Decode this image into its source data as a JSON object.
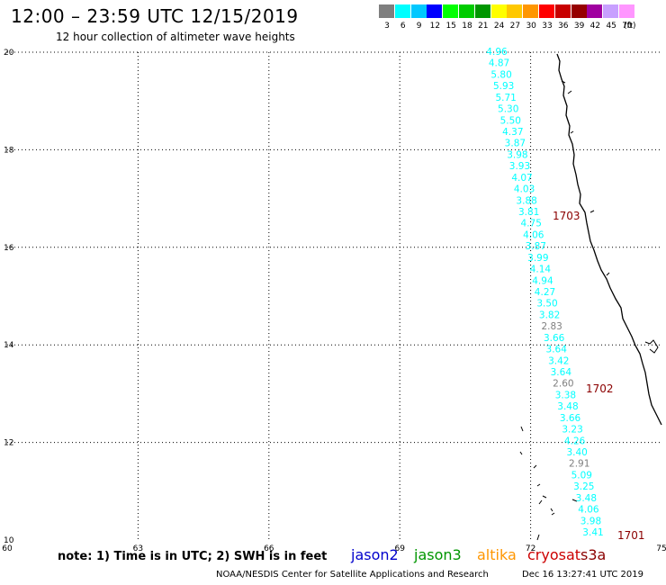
{
  "header": {
    "title": "12:00 – 23:59 UTC 12/15/2019",
    "subtitle": "12 hour collection of altimeter wave heights"
  },
  "legend": {
    "unit": "(ft)",
    "bins": [
      {
        "color": "#7f7f7f",
        "label": "3"
      },
      {
        "color": "#00ffff",
        "label": "6"
      },
      {
        "color": "#00c8ff",
        "label": "9"
      },
      {
        "color": "#0000ff",
        "label": "12"
      },
      {
        "color": "#00ff00",
        "label": "15"
      },
      {
        "color": "#00cc00",
        "label": "18"
      },
      {
        "color": "#009600",
        "label": "21"
      },
      {
        "color": "#ffff00",
        "label": "24"
      },
      {
        "color": "#ffc800",
        "label": "27"
      },
      {
        "color": "#ff9600",
        "label": "30"
      },
      {
        "color": "#ff0000",
        "label": "33"
      },
      {
        "color": "#c80000",
        "label": "36"
      },
      {
        "color": "#960000",
        "label": "39"
      },
      {
        "color": "#a000a0",
        "label": "42"
      },
      {
        "color": "#c8a0ff",
        "label": "45"
      },
      {
        "color": "#ff96ff",
        "label": "70"
      }
    ]
  },
  "map": {
    "lon_range": [
      60,
      75
    ],
    "lat_range": [
      10,
      20
    ],
    "lon_ticks": [
      "60",
      "63",
      "66",
      "69",
      "72",
      "75"
    ],
    "lat_ticks": [
      "10",
      "12",
      "14",
      "16",
      "18",
      "20"
    ],
    "track": [
      {
        "v": "4.96",
        "c": "#00ffff"
      },
      {
        "v": "4.87",
        "c": "#00ffff"
      },
      {
        "v": "5.80",
        "c": "#00ffff"
      },
      {
        "v": "5.93",
        "c": "#00ffff"
      },
      {
        "v": "5.71",
        "c": "#00ffff"
      },
      {
        "v": "5.30",
        "c": "#00ffff"
      },
      {
        "v": "5.50",
        "c": "#00ffff"
      },
      {
        "v": "4.37",
        "c": "#00ffff"
      },
      {
        "v": "3.87",
        "c": "#00ffff"
      },
      {
        "v": "3.98",
        "c": "#00ffff"
      },
      {
        "v": "3.93",
        "c": "#00ffff"
      },
      {
        "v": "4.07",
        "c": "#00ffff"
      },
      {
        "v": "4.03",
        "c": "#00ffff"
      },
      {
        "v": "3.88",
        "c": "#00ffff"
      },
      {
        "v": "3.81",
        "c": "#00ffff"
      },
      {
        "v": "4.75",
        "c": "#00ffff"
      },
      {
        "v": "4.06",
        "c": "#00ffff"
      },
      {
        "v": "3.87",
        "c": "#00ffff"
      },
      {
        "v": "3.99",
        "c": "#00ffff"
      },
      {
        "v": "4.14",
        "c": "#00ffff"
      },
      {
        "v": "4.94",
        "c": "#00ffff"
      },
      {
        "v": "4.27",
        "c": "#00ffff"
      },
      {
        "v": "3.50",
        "c": "#00ffff"
      },
      {
        "v": "3.82",
        "c": "#00ffff"
      },
      {
        "v": "2.83",
        "c": "#7f7f7f"
      },
      {
        "v": "3.66",
        "c": "#00ffff"
      },
      {
        "v": "3.64",
        "c": "#00ffff"
      },
      {
        "v": "3.42",
        "c": "#00ffff"
      },
      {
        "v": "3.64",
        "c": "#00ffff"
      },
      {
        "v": "2.60",
        "c": "#7f7f7f"
      },
      {
        "v": "3.38",
        "c": "#00ffff"
      },
      {
        "v": "3.48",
        "c": "#00ffff"
      },
      {
        "v": "3.66",
        "c": "#00ffff"
      },
      {
        "v": "3.23",
        "c": "#00ffff"
      },
      {
        "v": "4.26",
        "c": "#00ffff"
      },
      {
        "v": "3.40",
        "c": "#00ffff"
      },
      {
        "v": "2.91",
        "c": "#7f7f7f"
      },
      {
        "v": "5.09",
        "c": "#00ffff"
      },
      {
        "v": "3.25",
        "c": "#00ffff"
      },
      {
        "v": "3.48",
        "c": "#00ffff"
      },
      {
        "v": "4.06",
        "c": "#00ffff"
      },
      {
        "v": "3.98",
        "c": "#00ffff"
      },
      {
        "v": "3.41",
        "c": "#00ffff"
      }
    ],
    "time_labels": [
      {
        "text": "1703",
        "color": "#8b0000"
      },
      {
        "text": "1702",
        "color": "#8b0000"
      },
      {
        "text": "1701",
        "color": "#8b0000"
      }
    ]
  },
  "note": "note: 1) Time is in UTC; 2) SWH is in feet",
  "satellites": [
    {
      "name": "jason2",
      "color": "#0000cc"
    },
    {
      "name": "jason3",
      "color": "#009600"
    },
    {
      "name": "altika",
      "color": "#ff9600"
    },
    {
      "name": "cryosat",
      "color": "#cc0000"
    },
    {
      "name": "s3a",
      "color": "#8b0000"
    }
  ],
  "footer": {
    "credit": "NOAA/NESDIS Center for Satellite Applications and Research",
    "timestamp": "Dec 16 13:27:41 UTC 2019"
  }
}
